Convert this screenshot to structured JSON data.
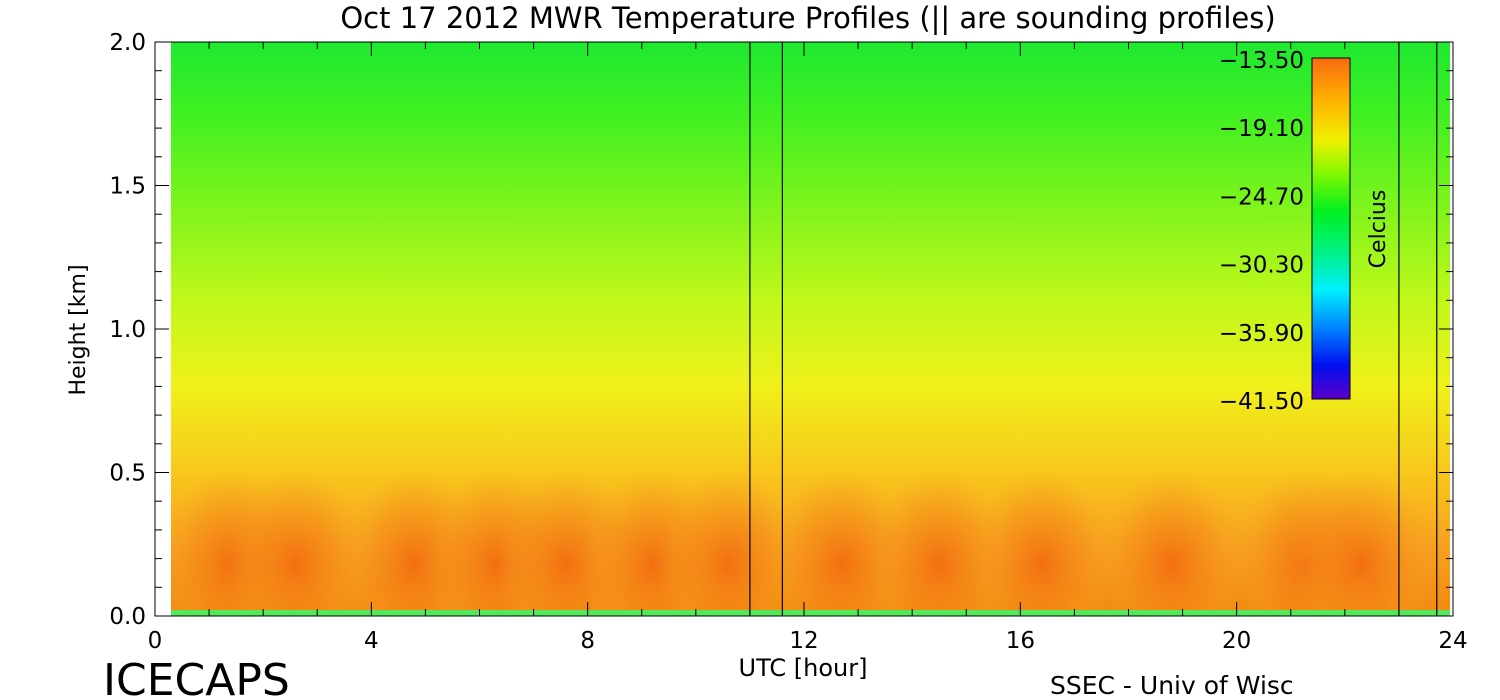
{
  "chart_data": {
    "type": "heatmap",
    "title": "Oct 17 2012 MWR Temperature Profiles (|| are sounding profiles)",
    "xlabel": "UTC [hour]",
    "ylabel": "Height [km]",
    "xlim": [
      0,
      24
    ],
    "ylim": [
      0,
      2.0
    ],
    "x_ticks": [
      "0",
      "4",
      "8",
      "12",
      "16",
      "20",
      "24"
    ],
    "y_ticks": [
      "0.0",
      "0.5",
      "1.0",
      "1.5",
      "2.0"
    ],
    "sounding_times_hour": [
      11.0,
      11.6,
      23.0,
      23.7
    ],
    "colorbar": {
      "label": "Celcius",
      "min": -41.5,
      "max": -13.5,
      "tick_labels": [
        "-13.50",
        "-19.10",
        "-24.70",
        "-30.30",
        "-35.90",
        "-41.50"
      ],
      "tick_values": [
        -13.5,
        -19.1,
        -24.7,
        -30.3,
        -35.9,
        -41.5
      ]
    }
  },
  "footer": {
    "left": "ICECAPS",
    "right": "SSEC - Univ of Wisc"
  }
}
